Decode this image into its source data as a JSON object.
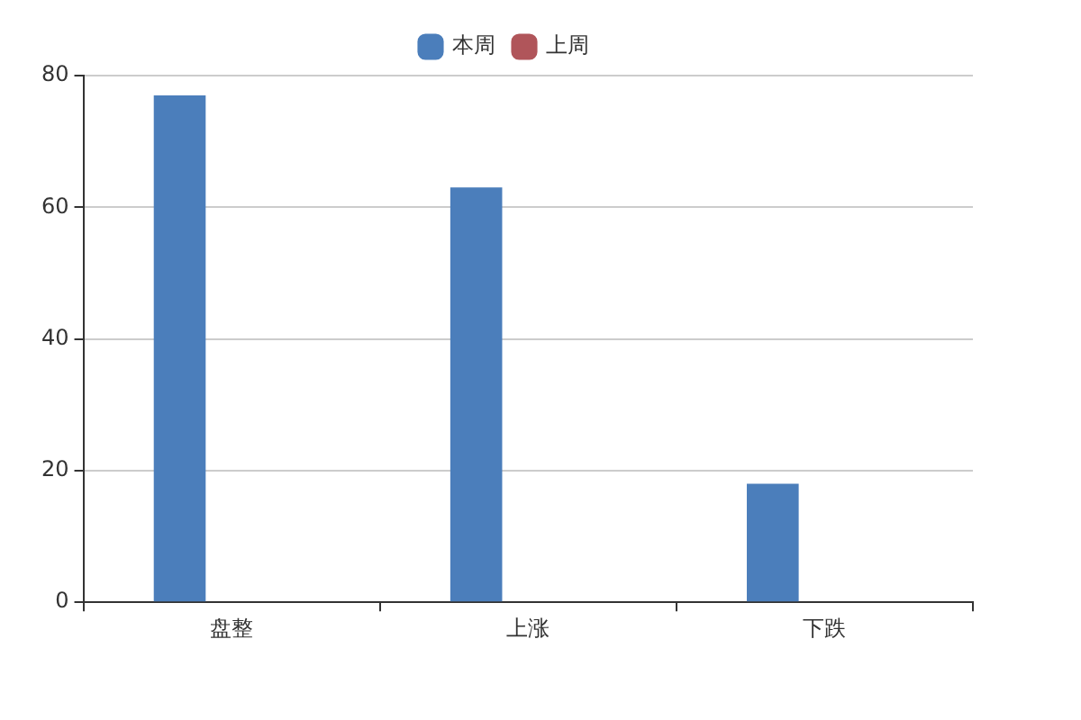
{
  "chart_data": {
    "type": "bar",
    "categories": [
      "盘整",
      "上涨",
      "下跌"
    ],
    "series": [
      {
        "name": "本周",
        "color": "#4b7ebb",
        "values": [
          77,
          63,
          18
        ]
      },
      {
        "name": "上周",
        "color": "#b0555a",
        "values": [
          null,
          null,
          null
        ]
      }
    ],
    "ylim": [
      0,
      80
    ],
    "yticks": [
      0,
      20,
      40,
      60,
      80
    ],
    "grid": "y",
    "legend": "top"
  }
}
